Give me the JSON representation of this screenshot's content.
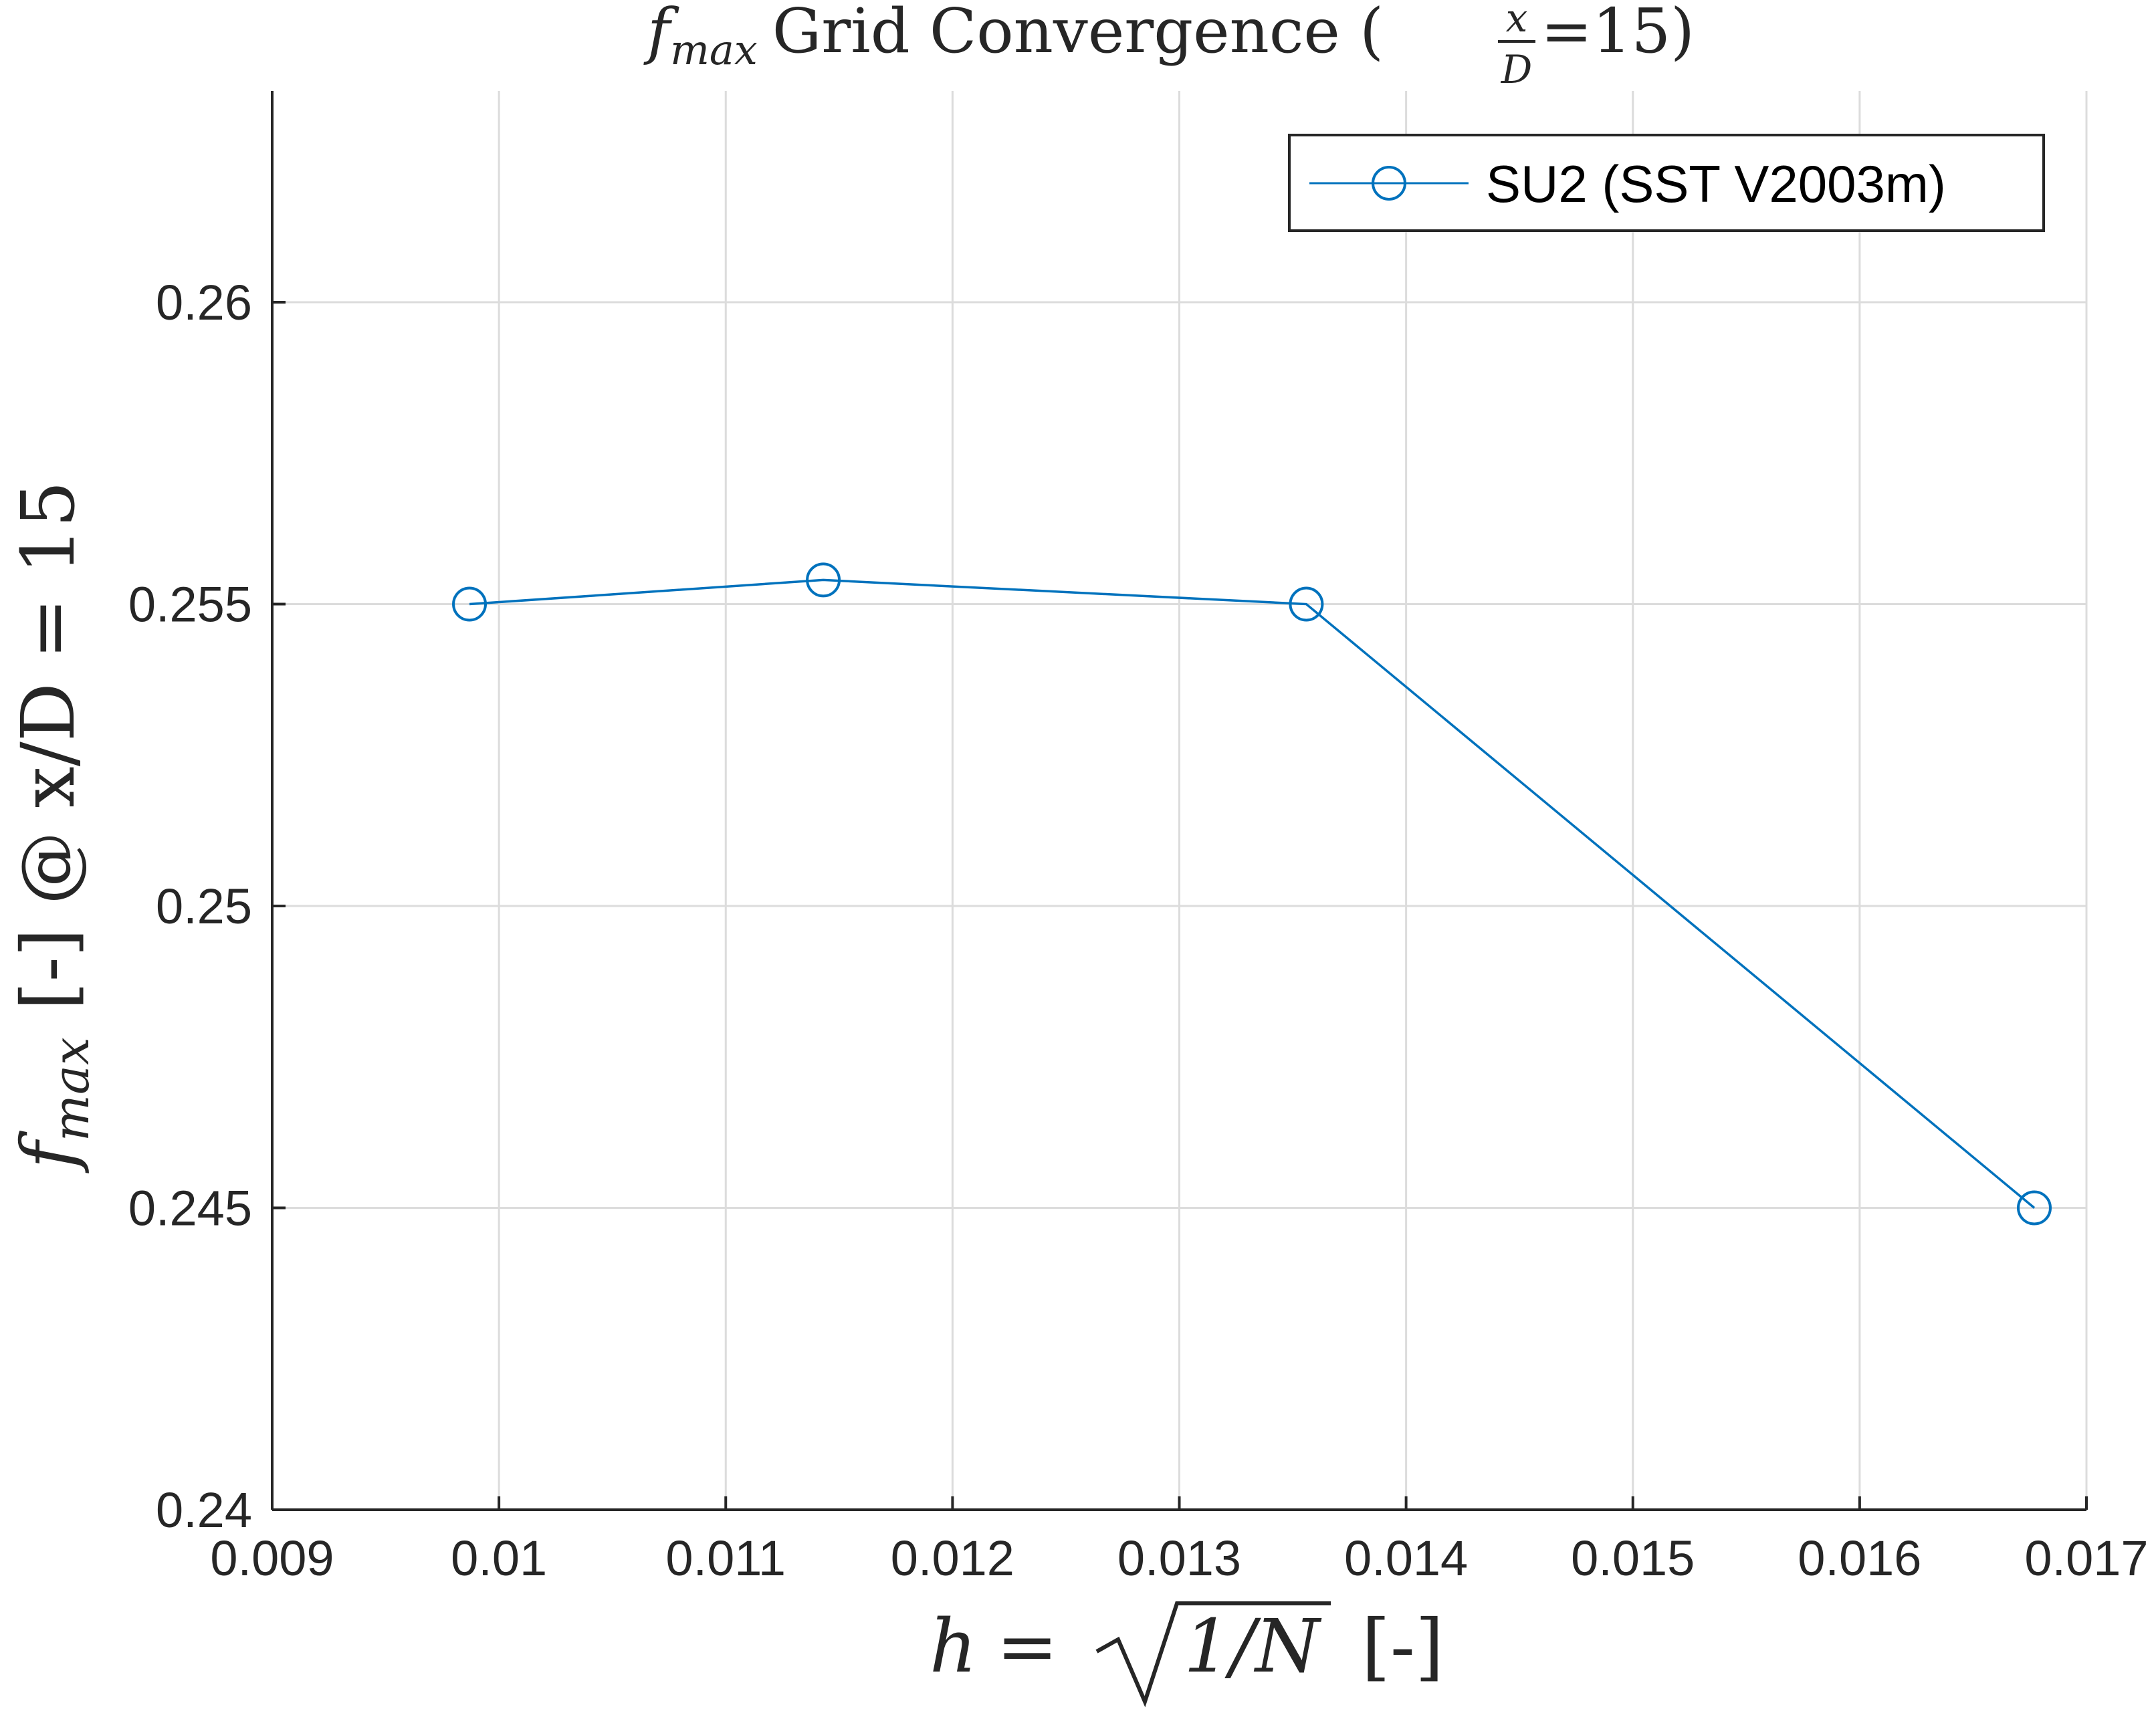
{
  "chart_data": {
    "type": "line",
    "title": "f_max Grid Convergence (x/D=15)",
    "title_parts": {
      "symbol": "f",
      "symbol_sub": "max",
      "middle": "Grid Convergence (",
      "frac_num": "x",
      "frac_den": "D",
      "tail": "=15)"
    },
    "xlabel": "h = √(1/N) [-]",
    "xlabel_parts": {
      "lhs": "h",
      "eq": "=",
      "radicand": "1/N",
      "unit": "[-]"
    },
    "ylabel": "f_max [-] @ x/D = 15",
    "ylabel_parts": {
      "symbol": "f",
      "symbol_sub": "max",
      "rest": "[-] @ x/D = 15"
    },
    "xlim": [
      0.009,
      0.017
    ],
    "ylim": [
      0.24,
      0.2635
    ],
    "xticks": [
      0.009,
      0.01,
      0.011,
      0.012,
      0.013,
      0.014,
      0.015,
      0.016,
      0.017
    ],
    "xtick_labels": [
      "0.009",
      "0.01",
      "0.011",
      "0.012",
      "0.013",
      "0.014",
      "0.015",
      "0.016",
      "0.017"
    ],
    "yticks": [
      0.24,
      0.245,
      0.25,
      0.255,
      0.26
    ],
    "ytick_labels": [
      "0.24",
      "0.245",
      "0.25",
      "0.255",
      "0.26"
    ],
    "grid": true,
    "legend_position": "top-right",
    "series": [
      {
        "name": "SU2 (SST V2003m)",
        "color": "#0072BD",
        "marker": "circle",
        "x": [
          0.00987,
          0.01143,
          0.01356,
          0.01677
        ],
        "y": [
          0.255,
          0.2554,
          0.255,
          0.245
        ]
      }
    ]
  }
}
